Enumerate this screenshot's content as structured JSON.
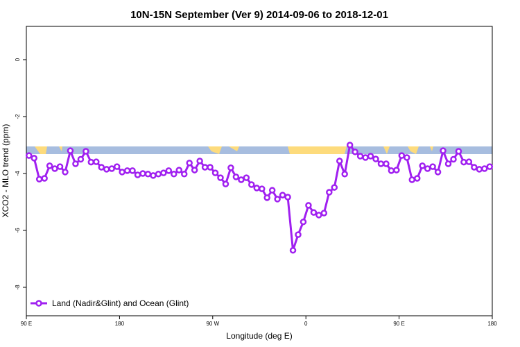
{
  "chart_data": {
    "type": "line",
    "title": "10N-15N September (Ver 9)   2014-09-06 to 2018-12-01",
    "x_label": "Longitude (deg E)",
    "y_label": "XCO2 - MLO trend (ppm)",
    "xlim": [
      90,
      540
    ],
    "ylim": [
      -9,
      1.17
    ],
    "xticks": [
      {
        "value": 90,
        "label": "90 E"
      },
      180,
      {
        "value": 270,
        "label": "90 W"
      },
      {
        "value": 360,
        "label": "0"
      },
      {
        "value": 450,
        "label": "90 E"
      },
      {
        "value": 540,
        "label": "180"
      }
    ],
    "yticks": [
      0,
      -2,
      -4,
      -6,
      -8
    ],
    "legend_position": "bottom-left",
    "x": [
      92.5,
      97.5,
      102.5,
      107.5,
      112.5,
      117.5,
      122.5,
      127.5,
      132.5,
      137.5,
      142.5,
      147.5,
      152.5,
      157.5,
      162.5,
      167.5,
      172.5,
      177.5,
      182.5,
      187.5,
      192.5,
      197.5,
      202.5,
      207.5,
      212.5,
      217.5,
      222.5,
      227.5,
      232.5,
      237.5,
      242.5,
      247.5,
      252.5,
      257.5,
      262.5,
      267.5,
      272.5,
      277.5,
      282.5,
      287.5,
      292.5,
      297.5,
      302.5,
      307.5,
      312.5,
      317.5,
      322.5,
      327.5,
      332.5,
      337.5,
      342.5,
      347.5,
      352.5,
      357.5,
      362.5,
      367.5,
      372.5,
      377.5,
      382.5,
      387.5,
      392.5,
      397.5,
      402.5,
      407.5,
      412.5,
      417.5,
      422.5,
      427.5,
      432.5,
      437.5,
      442.5,
      447.5,
      452.5,
      457.5,
      462.5,
      467.5,
      472.5,
      477.5,
      482.5,
      487.5,
      492.5,
      497.5,
      502.5,
      507.5,
      512.5,
      517.5,
      522.5,
      527.5,
      532.5,
      537.5
    ],
    "series": [
      {
        "name": "Land (Nadir&Glint) and Ocean (Glint)",
        "color": "#a020f0",
        "values": [
          -3.37,
          -3.46,
          -4.2,
          -4.17,
          -3.73,
          -3.83,
          -3.76,
          -3.95,
          -3.2,
          -3.66,
          -3.5,
          -3.22,
          -3.6,
          -3.59,
          -3.78,
          -3.85,
          -3.83,
          -3.76,
          -3.95,
          -3.9,
          -3.9,
          -4.05,
          -4.0,
          -4.02,
          -4.07,
          -4.02,
          -3.98,
          -3.9,
          -4.02,
          -3.88,
          -4.02,
          -3.63,
          -3.88,
          -3.56,
          -3.78,
          -3.78,
          -3.98,
          -4.15,
          -4.37,
          -3.8,
          -4.12,
          -4.22,
          -4.15,
          -4.39,
          -4.51,
          -4.54,
          -4.85,
          -4.59,
          -4.9,
          -4.76,
          -4.83,
          -6.7,
          -6.15,
          -5.7,
          -5.12,
          -5.37,
          -5.46,
          -5.39,
          -4.66,
          -4.49,
          -3.56,
          -4.02,
          -3.0,
          -3.24,
          -3.39,
          -3.44,
          -3.39,
          -3.49,
          -3.66,
          -3.66,
          -3.9,
          -3.88,
          -3.37,
          -3.44,
          -4.22,
          -4.17,
          -3.73,
          -3.83,
          -3.76,
          -3.95,
          -3.2,
          -3.66,
          -3.5,
          -3.22,
          -3.6,
          -3.59,
          -3.78,
          -3.85,
          -3.83,
          -3.76
        ]
      }
    ]
  }
}
